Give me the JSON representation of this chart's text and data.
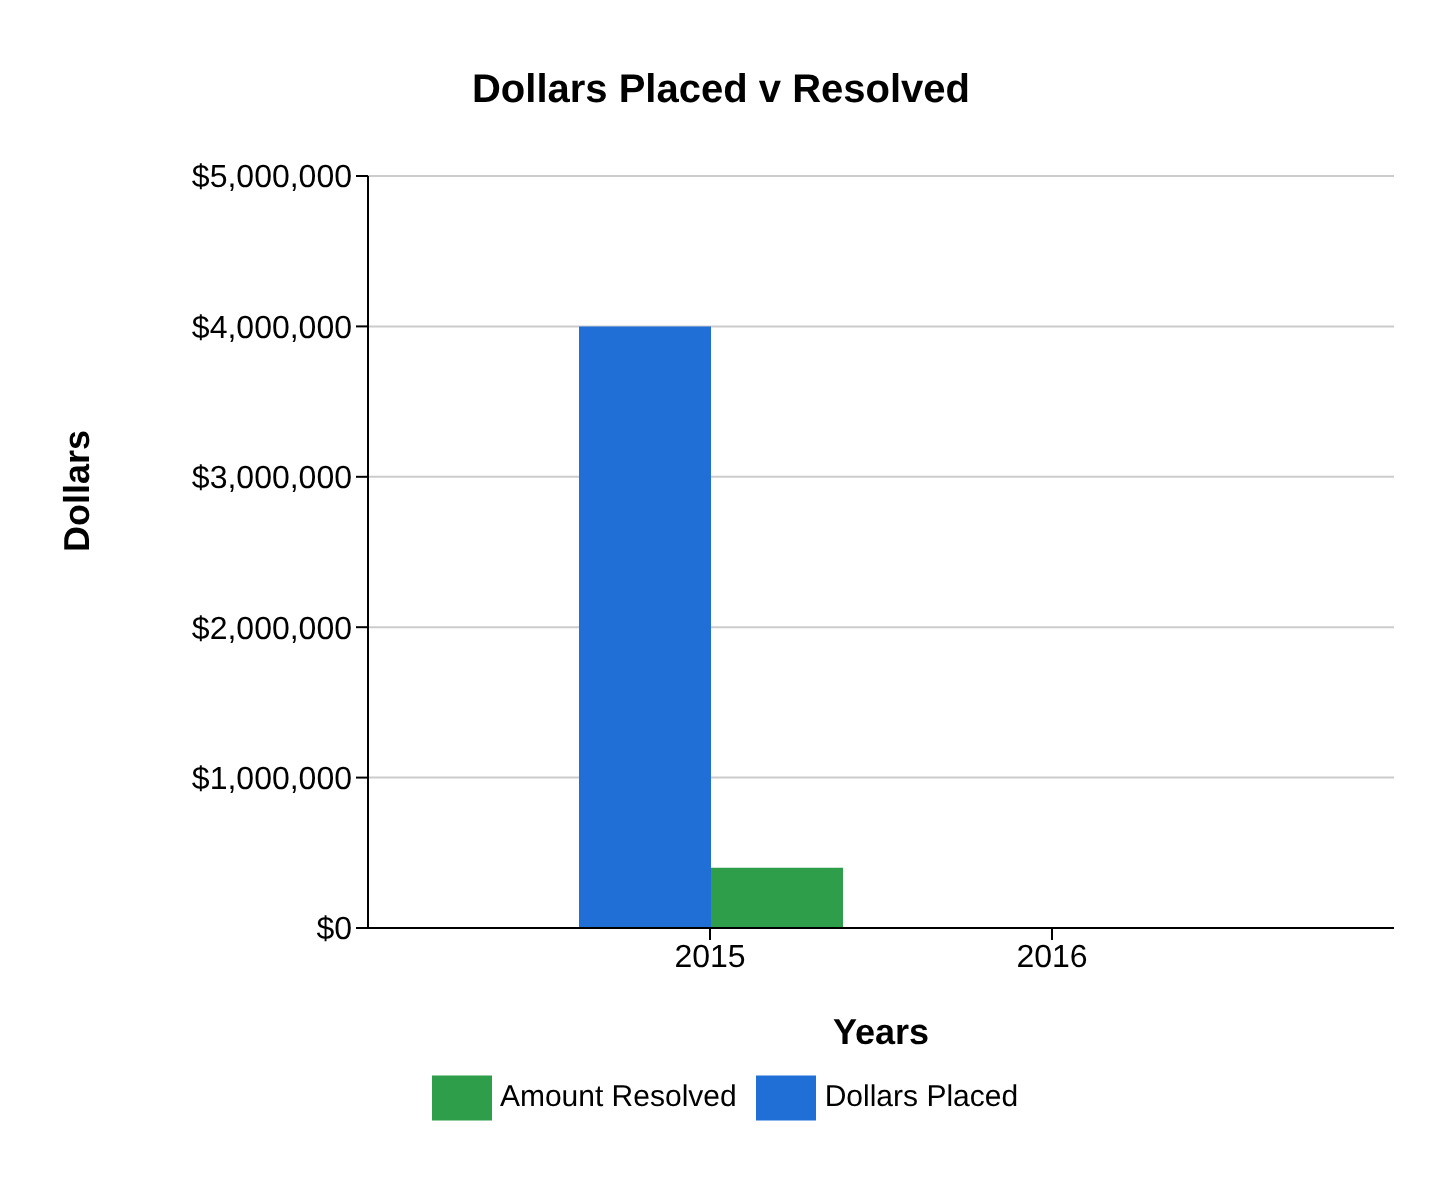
{
  "chart_data": {
    "type": "bar",
    "title": "Dollars Placed v Resolved",
    "xlabel": "Years",
    "ylabel": "Dollars",
    "categories": [
      "2015",
      "2016"
    ],
    "series": [
      {
        "name": "Dollars Placed",
        "color": "#1f6fd6",
        "values": [
          4000000,
          0
        ]
      },
      {
        "name": "Amount Resolved",
        "color": "#2e9e4a",
        "values": [
          400000,
          0
        ]
      }
    ],
    "ylim": [
      0,
      5000000
    ],
    "yticks": [
      {
        "value": 0,
        "label": "$0"
      },
      {
        "value": 1000000,
        "label": "$1,000,000"
      },
      {
        "value": 2000000,
        "label": "$2,000,000"
      },
      {
        "value": 3000000,
        "label": "$3,000,000"
      },
      {
        "value": 4000000,
        "label": "$4,000,000"
      },
      {
        "value": 5000000,
        "label": "$5,000,000"
      }
    ],
    "grid": "y",
    "legend": "bottom"
  }
}
